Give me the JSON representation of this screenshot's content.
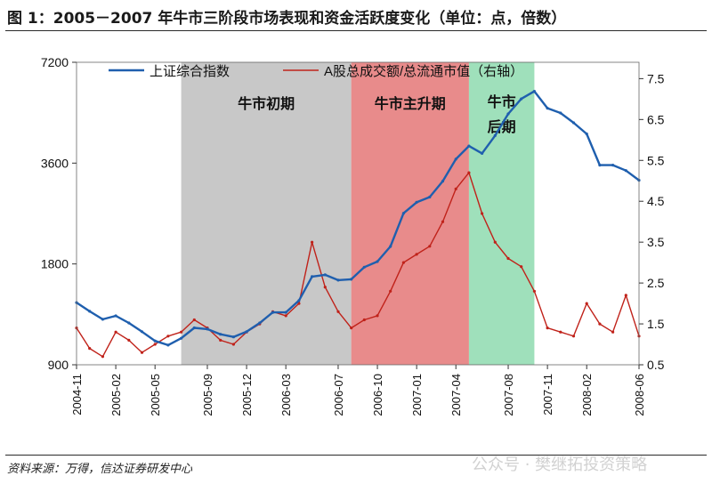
{
  "figure": {
    "title": "图 1：2005－2007 年牛市三阶段市场表现和资金活跃度变化（单位：点，倍数）",
    "source": "资料来源：万得，信达证券研发中心",
    "watermark": "公众号 · 樊继拓投资策略"
  },
  "chart_data": {
    "type": "line",
    "x_ticks": [
      "2004-11",
      "2005-02",
      "2005-05",
      "2005-09",
      "2005-12",
      "2006-03",
      "2006-07",
      "2006-10",
      "2007-01",
      "2007-04",
      "2007-08",
      "2007-11",
      "2008-02",
      "2008-06"
    ],
    "y_left": {
      "ticks": [
        900,
        1800,
        3600,
        7200
      ],
      "range": [
        900,
        7200
      ],
      "scale": "log"
    },
    "y_right": {
      "ticks": [
        0.5,
        1.5,
        2.5,
        3.5,
        4.5,
        5.5,
        6.5,
        7.5
      ],
      "range": [
        0.5,
        7.9
      ]
    },
    "phases": [
      {
        "label": "牛市初期",
        "start": "2005-07",
        "end": "2006-08",
        "color": "#c8c8c8"
      },
      {
        "label": "牛市主升期",
        "start": "2006-08",
        "end": "2007-05",
        "color": "#e88b8b"
      },
      {
        "label_line1": "牛市",
        "label_line2": "后期",
        "start": "2007-05",
        "end": "2007-10",
        "color": "#9fe0bb"
      }
    ],
    "series": [
      {
        "name": "上证综合指数",
        "axis": "left",
        "color": "#1f5fae",
        "x": [
          "2004-11",
          "2004-12",
          "2005-01",
          "2005-02",
          "2005-03",
          "2005-04",
          "2005-05",
          "2005-06",
          "2005-07",
          "2005-08",
          "2005-09",
          "2005-10",
          "2005-11",
          "2005-12",
          "2006-01",
          "2006-02",
          "2006-03",
          "2006-04",
          "2006-05",
          "2006-06",
          "2006-07",
          "2006-08",
          "2006-09",
          "2006-10",
          "2006-11",
          "2006-12",
          "2007-01",
          "2007-02",
          "2007-03",
          "2007-04",
          "2007-05",
          "2007-06",
          "2007-07",
          "2007-08",
          "2007-09",
          "2007-10",
          "2007-11",
          "2007-12",
          "2008-01",
          "2008-02",
          "2008-03",
          "2008-04",
          "2008-05",
          "2008-06"
        ],
        "values": [
          1380,
          1300,
          1230,
          1260,
          1200,
          1130,
          1060,
          1030,
          1080,
          1160,
          1150,
          1110,
          1090,
          1130,
          1200,
          1290,
          1290,
          1400,
          1650,
          1670,
          1610,
          1620,
          1760,
          1830,
          2030,
          2550,
          2750,
          2850,
          3180,
          3700,
          4050,
          3850,
          4350,
          5050,
          5600,
          5900,
          5250,
          5080,
          4750,
          4400,
          3550,
          3550,
          3420,
          3200
        ]
      },
      {
        "name": "A股总成交额/总流通市值（右轴）",
        "axis": "right",
        "color": "#c0221a",
        "x": [
          "2004-11",
          "2004-12",
          "2005-01",
          "2005-02",
          "2005-03",
          "2005-04",
          "2005-05",
          "2005-06",
          "2005-07",
          "2005-08",
          "2005-09",
          "2005-10",
          "2005-11",
          "2005-12",
          "2006-01",
          "2006-02",
          "2006-03",
          "2006-04",
          "2006-05",
          "2006-06",
          "2006-07",
          "2006-08",
          "2006-09",
          "2006-10",
          "2006-11",
          "2006-12",
          "2007-01",
          "2007-02",
          "2007-03",
          "2007-04",
          "2007-05",
          "2007-06",
          "2007-07",
          "2007-08",
          "2007-09",
          "2007-10",
          "2007-11",
          "2007-12",
          "2008-01",
          "2008-02",
          "2008-03",
          "2008-04",
          "2008-05",
          "2008-06"
        ],
        "values": [
          1.4,
          0.9,
          0.7,
          1.3,
          1.1,
          0.8,
          1.0,
          1.2,
          1.3,
          1.6,
          1.4,
          1.1,
          1.0,
          1.3,
          1.5,
          1.8,
          1.7,
          2.0,
          3.5,
          2.4,
          1.8,
          1.4,
          1.6,
          1.7,
          2.3,
          3.0,
          3.2,
          3.4,
          4.0,
          4.8,
          5.2,
          4.2,
          3.5,
          3.1,
          2.9,
          2.3,
          1.4,
          1.3,
          1.2,
          2.0,
          1.5,
          1.3,
          2.2,
          1.2
        ]
      }
    ]
  }
}
